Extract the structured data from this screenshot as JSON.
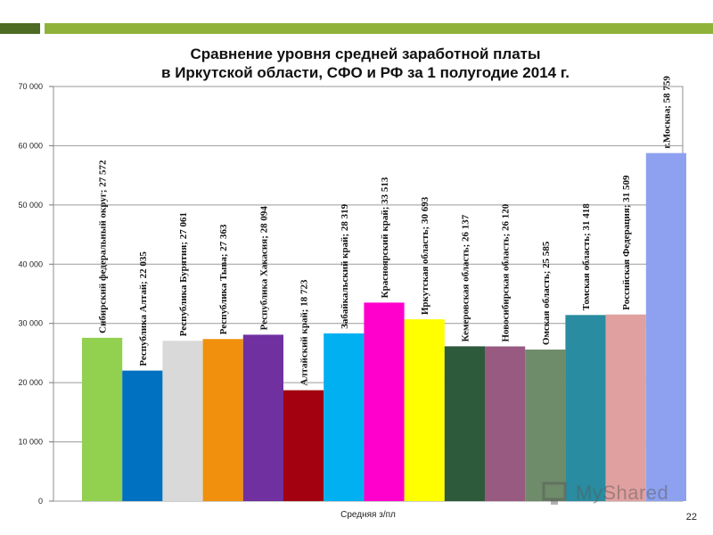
{
  "slide": {
    "title_line1": "Сравнение уровня средней заработной платы",
    "title_line2": "в Иркутской области, СФО и РФ за 1 полугодие 2014 г.",
    "page_number": "22",
    "watermark": "MyShared"
  },
  "colors": {
    "top_bar_dark": "#4d6b22",
    "top_bar_light": "#8fb33a"
  },
  "chart_data": {
    "type": "bar",
    "xlabel": "Средняя з/пл",
    "ylabel": "",
    "ylim": [
      0,
      70000
    ],
    "yticks": [
      {
        "value": 0,
        "label": "0"
      },
      {
        "value": 10000,
        "label": "10 000"
      },
      {
        "value": 20000,
        "label": "20 000"
      },
      {
        "value": 30000,
        "label": "30 000"
      },
      {
        "value": 40000,
        "label": "40 000"
      },
      {
        "value": 50000,
        "label": "50 000"
      },
      {
        "value": 60000,
        "label": "60 000"
      },
      {
        "value": 70000,
        "label": "70 000"
      }
    ],
    "grid": true,
    "bars": [
      {
        "label": "Сибирский федеральный округ; 27 572",
        "value": 27572,
        "color": "#92d050"
      },
      {
        "label": "Республика Алтай; 22 035",
        "value": 22035,
        "color": "#0070c0"
      },
      {
        "label": "Республика Бурятия; 27 061",
        "value": 27061,
        "color": "#d9d9d9"
      },
      {
        "label": "Республика Тыва; 27 363",
        "value": 27363,
        "color": "#f0900c"
      },
      {
        "label": "Республика Хакасия; 28 094",
        "value": 28094,
        "color": "#7030a0"
      },
      {
        "label": "Алтайский край; 18 723",
        "value": 18723,
        "color": "#a30010"
      },
      {
        "label": "Забайкальский край; 28 319",
        "value": 28319,
        "color": "#00b0f0"
      },
      {
        "label": "Красноярский край; 33 513",
        "value": 33513,
        "color": "#ff00cc"
      },
      {
        "label": "Иркутская область; 30 693",
        "value": 30693,
        "color": "#ffff00"
      },
      {
        "label": "Кемеровская область; 26 137",
        "value": 26137,
        "color": "#2e5a3c"
      },
      {
        "label": "Новосибирская область; 26 120",
        "value": 26120,
        "color": "#985a80"
      },
      {
        "label": "Омская область; 25 585",
        "value": 25585,
        "color": "#6e8b6a"
      },
      {
        "label": "Томская область; 31 418",
        "value": 31418,
        "color": "#2a8ca0"
      },
      {
        "label": "Российская Федерация; 31 509",
        "value": 31509,
        "color": "#e0a0a0"
      },
      {
        "label": "г.Москва; 58 759",
        "value": 58759,
        "color": "#8ea1f0"
      }
    ]
  }
}
